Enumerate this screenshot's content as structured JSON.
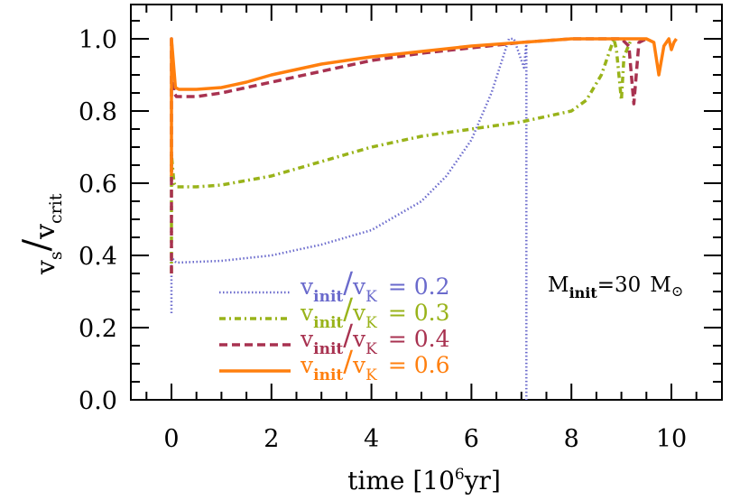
{
  "chart_data": {
    "type": "line",
    "title": "",
    "xlabel": "time [10^6 yr]",
    "ylabel": "v_s / v_crit",
    "xlim": [
      -0.8,
      11.0
    ],
    "ylim": [
      0.0,
      1.1
    ],
    "xticks": [
      0,
      2,
      4,
      6,
      8,
      10
    ],
    "yticks": [
      0.0,
      0.2,
      0.4,
      0.6,
      0.8,
      1.0
    ],
    "xtick_labels": [
      "0",
      "2",
      "4",
      "6",
      "8",
      "10"
    ],
    "ytick_labels": [
      "0.0",
      "0.2",
      "0.4",
      "0.6",
      "0.8",
      "1.0"
    ],
    "grid": false,
    "legend_position": "lower center",
    "annotation": "M_init=30 M_sun",
    "series": [
      {
        "name": "v_init/v_K = 0.2",
        "color": "#6a6acc",
        "style": "dotted",
        "x": [
          0.0,
          0.0,
          0.05,
          0.1,
          1.0,
          2.0,
          3.0,
          4.0,
          5.0,
          5.5,
          6.0,
          6.4,
          6.75,
          6.85,
          7.05,
          7.1,
          7.1
        ],
        "y": [
          0.24,
          0.4,
          0.385,
          0.38,
          0.385,
          0.4,
          0.43,
          0.47,
          0.55,
          0.62,
          0.72,
          0.85,
          1.0,
          1.0,
          0.92,
          0.99,
          0.0
        ]
      },
      {
        "name": "v_init/v_K = 0.3",
        "color": "#99b31a",
        "style": "dashdot",
        "x": [
          0.0,
          0.0,
          0.05,
          0.1,
          0.5,
          1.0,
          2.0,
          3.0,
          4.0,
          5.0,
          6.0,
          7.0,
          7.5,
          8.0,
          8.3,
          8.6,
          8.85,
          8.9,
          9.0,
          9.05,
          9.2
        ],
        "y": [
          0.35,
          0.68,
          0.6,
          0.59,
          0.59,
          0.595,
          0.62,
          0.66,
          0.7,
          0.73,
          0.75,
          0.77,
          0.785,
          0.8,
          0.83,
          0.9,
          1.0,
          0.97,
          0.83,
          0.95,
          1.0
        ]
      },
      {
        "name": "v_init/v_K = 0.4",
        "color": "#a83250",
        "style": "dashed",
        "x": [
          0.0,
          0.0,
          0.05,
          0.1,
          0.5,
          1.0,
          2.0,
          3.0,
          4.0,
          5.0,
          6.0,
          7.0,
          8.0,
          9.0,
          9.15,
          9.25,
          9.35,
          9.5
        ],
        "y": [
          0.35,
          1.0,
          0.85,
          0.84,
          0.84,
          0.85,
          0.88,
          0.91,
          0.94,
          0.96,
          0.975,
          0.99,
          1.0,
          1.0,
          0.98,
          0.82,
          0.99,
          1.0
        ]
      },
      {
        "name": "v_init/v_K = 0.6",
        "color": "#ff7f0e",
        "style": "solid",
        "x": [
          0.0,
          0.0,
          0.08,
          0.15,
          0.5,
          1.0,
          1.5,
          2.0,
          3.0,
          4.0,
          5.0,
          6.0,
          7.0,
          8.0,
          9.0,
          9.5,
          9.65,
          9.75,
          9.85,
          9.95,
          10.0,
          10.05,
          10.1
        ],
        "y": [
          0.62,
          1.0,
          0.865,
          0.86,
          0.86,
          0.865,
          0.88,
          0.9,
          0.93,
          0.95,
          0.965,
          0.98,
          0.99,
          1.0,
          1.0,
          1.0,
          0.99,
          0.9,
          0.98,
          1.0,
          0.97,
          0.99,
          1.0
        ]
      }
    ]
  },
  "axes": {
    "xlabel_main": "time [10",
    "xlabel_sup": "6",
    "xlabel_tail": "yr]",
    "ylabel_v1": "v",
    "ylabel_s": "s",
    "ylabel_slash": "/",
    "ylabel_v2": "v",
    "ylabel_crit": "crit"
  },
  "legend": [
    {
      "v": "v",
      "sub1": "init",
      "slash": "/",
      "v2": "v",
      "sub2": "K",
      "eq": "= 0.2",
      "color": "#6a6acc"
    },
    {
      "v": "v",
      "sub1": "init",
      "slash": "/",
      "v2": "v",
      "sub2": "K",
      "eq": "= 0.3",
      "color": "#99b31a"
    },
    {
      "v": "v",
      "sub1": "init",
      "slash": "/",
      "v2": "v",
      "sub2": "K",
      "eq": "= 0.4",
      "color": "#a83250"
    },
    {
      "v": "v",
      "sub1": "init",
      "slash": "/",
      "v2": "v",
      "sub2": "K",
      "eq": "= 0.6",
      "color": "#ff7f0e"
    }
  ],
  "annotation": {
    "m": "M",
    "sub": "init",
    "eq": "=30",
    "m2": "M",
    "sun": "⊙"
  }
}
